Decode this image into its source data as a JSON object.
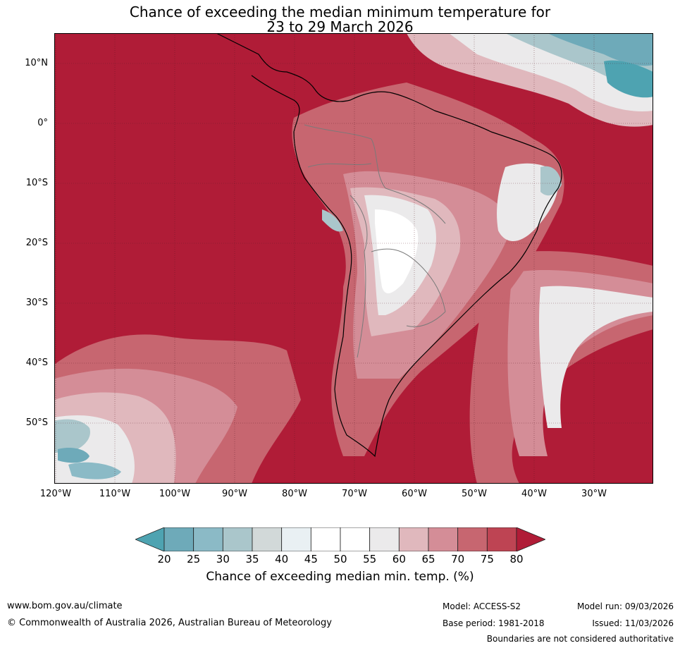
{
  "title": {
    "line1": "Chance of exceeding the median minimum temperature for",
    "line2": "23 to 29 March 2026"
  },
  "map": {
    "region": "South America",
    "lat_labels": [
      "10°N",
      "0°",
      "10°S",
      "20°S",
      "30°S",
      "40°S",
      "50°S"
    ],
    "lon_labels": [
      "120°W",
      "110°W",
      "100°W",
      "90°W",
      "80°W",
      "70°W",
      "60°W",
      "50°W",
      "40°W",
      "30°W"
    ],
    "background_color": "#b01c37"
  },
  "colorbar": {
    "ticks": [
      "20",
      "25",
      "30",
      "35",
      "40",
      "45",
      "50",
      "55",
      "60",
      "65",
      "70",
      "75",
      "80"
    ],
    "colors": [
      "#4ea3b1",
      "#6eaab9",
      "#8bbac6",
      "#aac6cb",
      "#d2d9d9",
      "#e9f0f3",
      "#ffffff",
      "#ffffff",
      "#ebeaeb",
      "#e0b8bd",
      "#d48d97",
      "#c76670",
      "#be4453",
      "#b01c37"
    ],
    "label": "Chance of exceeding median min. temp. (%)"
  },
  "footer": {
    "website": "www.bom.gov.au/climate",
    "copyright": "© Commonwealth of Australia 2026, Australian Bureau of Meteorology",
    "model": "Model: ACCESS-S2",
    "base_period": "Base period: 1981-2018",
    "model_run": "Model run: 09/03/2026",
    "issued": "Issued: 11/03/2026",
    "disclaimer": "Boundaries are not considered authoritative"
  }
}
